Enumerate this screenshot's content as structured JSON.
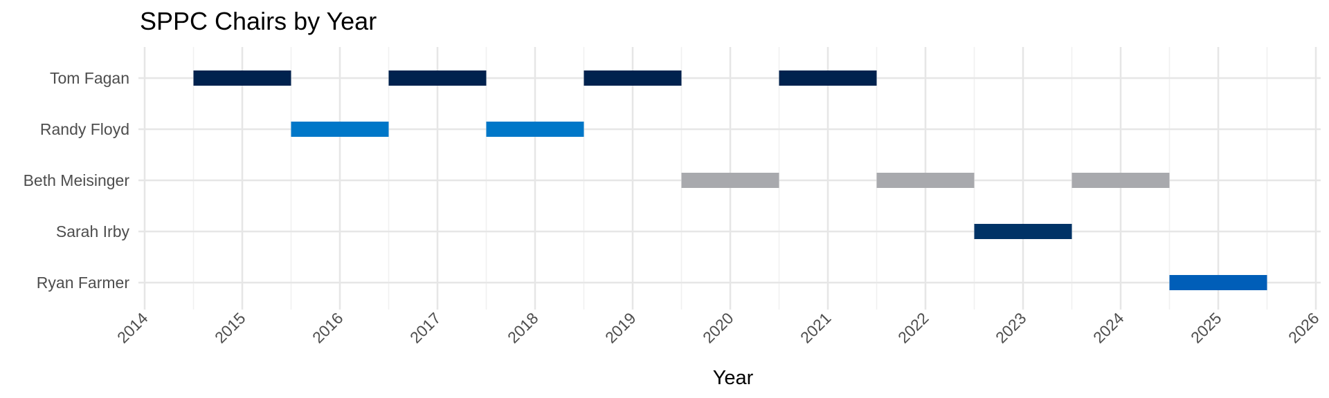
{
  "chart_data": {
    "type": "bar",
    "orientation": "horizontal",
    "title": "SPPC Chairs by Year",
    "xlabel": "Year",
    "ylabel": "",
    "xlim": [
      2014,
      2026
    ],
    "x_ticks": [
      "2014",
      "2015",
      "2016",
      "2017",
      "2018",
      "2019",
      "2020",
      "2021",
      "2022",
      "2023",
      "2024",
      "2025",
      "2026"
    ],
    "grid": true,
    "legend": "none",
    "categories": [
      "Tom Fagan",
      "Randy Floyd",
      "Beth Meisinger",
      "Sarah Irby",
      "Ryan Farmer"
    ],
    "series": [
      {
        "category": "Tom Fagan",
        "color": "#00224e",
        "years": [
          2015,
          2017,
          2019,
          2021
        ]
      },
      {
        "category": "Randy Floyd",
        "color": "#0077c8",
        "years": [
          2016,
          2018
        ]
      },
      {
        "category": "Beth Meisinger",
        "color": "#a8a9ad",
        "years": [
          2020,
          2022,
          2024
        ]
      },
      {
        "category": "Sarah Irby",
        "color": "#003366",
        "years": [
          2023
        ]
      },
      {
        "category": "Ryan Farmer",
        "color": "#005eb8",
        "years": [
          2025
        ]
      }
    ]
  }
}
